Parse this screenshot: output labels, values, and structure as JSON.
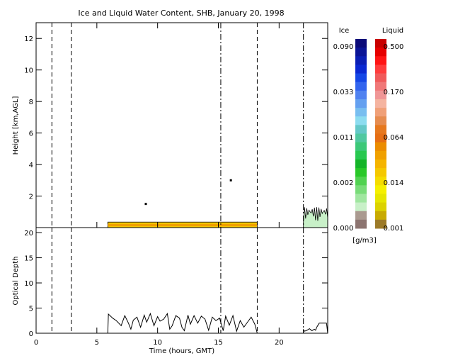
{
  "chart_data": {
    "type": "heatmap",
    "title": "Ice and Liquid Water Content, SHB, January 20, 1998",
    "xlabel": "Time (hours, GMT)",
    "xlim": [
      0,
      24
    ],
    "x_ticks": [
      "0",
      "5",
      "10",
      "15",
      "20"
    ],
    "x_tick_values": [
      0,
      5,
      10,
      15,
      20
    ],
    "dashed_time_markers": [
      1.3,
      2.9,
      15.2,
      18.2,
      22.0
    ],
    "panels": [
      {
        "name": "water-content",
        "ylabel": "Height [km,AGL]",
        "ylim": [
          0,
          13
        ],
        "y_ticks": [
          "2",
          "4",
          "6",
          "8",
          "10",
          "12"
        ],
        "y_tick_values": [
          2,
          4,
          6,
          8,
          10,
          12
        ],
        "cloud_layers": [
          {
            "t_start": 5.9,
            "t_end": 18.2,
            "top_km": 0.35,
            "base_km": 0.0,
            "phase": "liquid"
          },
          {
            "t_start": 22.0,
            "t_end": 24.0,
            "top_km": 1.3,
            "base_km": 0.0,
            "phase": "mixed"
          }
        ],
        "isolated_returns": [
          {
            "t": 9.0,
            "height_km": 1.5
          },
          {
            "t": 16.0,
            "height_km": 3.0
          }
        ]
      },
      {
        "name": "optical-depth",
        "ylabel": "Optical Depth",
        "ylim": [
          0,
          21
        ],
        "y_ticks": [
          "0",
          "5",
          "10",
          "15",
          "20"
        ],
        "y_tick_values": [
          0,
          5,
          10,
          15,
          20
        ],
        "series": [
          {
            "x": [
              5.9,
              5.95,
              6.3,
              6.6,
              7.0,
              7.3,
              7.6,
              7.8,
              8.0,
              8.3,
              8.6,
              8.9,
              9.1,
              9.4,
              9.7,
              10.0,
              10.2,
              10.5,
              10.8,
              11.0,
              11.2,
              11.5,
              11.8,
              12.0,
              12.2,
              12.5,
              12.7,
              13.0,
              13.3,
              13.6,
              13.9,
              14.2,
              14.5,
              14.8,
              15.1,
              15.4,
              15.6,
              15.9,
              16.2,
              16.5,
              16.8,
              17.1,
              17.4,
              17.7,
              18.0,
              18.2
            ],
            "y": [
              0.0,
              3.8,
              3.0,
              2.5,
              1.5,
              3.5,
              2.0,
              0.8,
              2.6,
              3.2,
              1.2,
              3.6,
              2.2,
              3.9,
              1.5,
              3.3,
              2.4,
              2.8,
              3.9,
              0.8,
              1.5,
              3.5,
              3.0,
              1.2,
              0.5,
              3.6,
              1.8,
              3.5,
              2.0,
              3.4,
              2.8,
              0.6,
              3.2,
              2.5,
              3.0,
              0.5,
              3.4,
              1.6,
              3.5,
              0.4,
              2.5,
              1.2,
              2.2,
              3.2,
              1.8,
              0.0
            ]
          },
          {
            "x": [
              22.0,
              22.0,
              22.1,
              22.3,
              22.5,
              22.7,
              22.9,
              23.0,
              23.1,
              23.3,
              23.6,
              23.9,
              24.0
            ],
            "y": [
              0.0,
              0.7,
              0.4,
              0.6,
              0.9,
              0.5,
              0.8,
              0.6,
              1.2,
              2.0,
              2.0,
              2.0,
              0.0
            ]
          }
        ]
      }
    ],
    "colorbar": {
      "ice_label": "Ice",
      "liquid_label": "Liquid",
      "units": "[g/m3]",
      "ice_tick_labels": [
        "0.090",
        "0.033",
        "0.011",
        "0.002",
        "0.000"
      ],
      "liquid_tick_labels": [
        "0.500",
        "0.170",
        "0.064",
        "0.014",
        "0.001"
      ],
      "ice_colors": [
        "#0a0a78",
        "#0a1496",
        "#0a1eb4",
        "#0a28d2",
        "#1446e6",
        "#3264ee",
        "#5082f0",
        "#64a0f0",
        "#78bef0",
        "#8cdcf0",
        "#64c8c8",
        "#50c8a0",
        "#3cc878",
        "#28c850",
        "#14b428",
        "#28c828",
        "#50d250",
        "#78dc78",
        "#a0e6a0",
        "#c8f0c8",
        "#aa9a90",
        "#8c7470"
      ],
      "liquid_colors": [
        "#c80000",
        "#e60000",
        "#ff1414",
        "#ff3c3c",
        "#f05a5a",
        "#f07878",
        "#f09696",
        "#f5b4a0",
        "#f0a078",
        "#e68c50",
        "#e6781e",
        "#e66e14",
        "#eb8c00",
        "#f0a000",
        "#f5b400",
        "#f5c800",
        "#f5dc00",
        "#f5f000",
        "#e6e600",
        "#dcd200",
        "#c8aa00",
        "#9c7a28"
      ]
    }
  }
}
